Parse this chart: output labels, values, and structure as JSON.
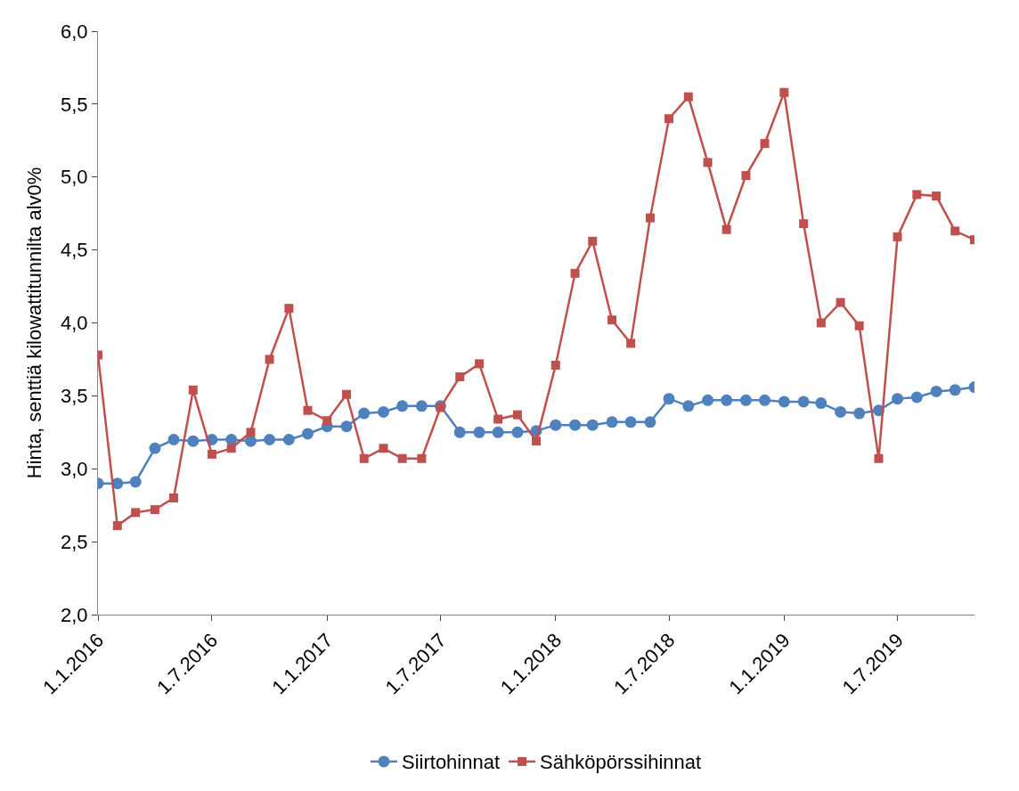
{
  "chart_data": {
    "type": "line",
    "ylabel": "Hinta, senttiä kilowattitunnilta alv0%",
    "x": [
      "2016-01",
      "2016-02",
      "2016-03",
      "2016-04",
      "2016-05",
      "2016-06",
      "2016-07",
      "2016-08",
      "2016-09",
      "2016-10",
      "2016-11",
      "2016-12",
      "2017-01",
      "2017-02",
      "2017-03",
      "2017-04",
      "2017-05",
      "2017-06",
      "2017-07",
      "2017-08",
      "2017-09",
      "2017-10",
      "2017-11",
      "2017-12",
      "2018-01",
      "2018-02",
      "2018-03",
      "2018-04",
      "2018-05",
      "2018-06",
      "2018-07",
      "2018-08",
      "2018-09",
      "2018-10",
      "2018-11",
      "2018-12",
      "2019-01",
      "2019-02",
      "2019-03",
      "2019-04",
      "2019-05",
      "2019-06",
      "2019-07",
      "2019-08",
      "2019-09",
      "2019-10",
      "2019-11"
    ],
    "series": [
      {
        "name": "Siirtohinnat",
        "color": "#4f81bd",
        "marker": "circle",
        "values": [
          2.9,
          2.9,
          2.91,
          3.14,
          3.2,
          3.19,
          3.2,
          3.2,
          3.19,
          3.2,
          3.2,
          3.24,
          3.29,
          3.29,
          3.38,
          3.39,
          3.43,
          3.43,
          3.43,
          3.25,
          3.25,
          3.25,
          3.25,
          3.26,
          3.3,
          3.3,
          3.3,
          3.32,
          3.32,
          3.32,
          3.48,
          3.43,
          3.47,
          3.47,
          3.47,
          3.47,
          3.46,
          3.46,
          3.45,
          3.39,
          3.38,
          3.4,
          3.48,
          3.49,
          3.53,
          3.54,
          3.56
        ]
      },
      {
        "name": "Sähköpörssihinnat",
        "color": "#c0504d",
        "marker": "square",
        "values": [
          3.78,
          2.61,
          2.7,
          2.72,
          2.8,
          3.54,
          3.1,
          3.14,
          3.25,
          3.75,
          4.1,
          3.4,
          3.33,
          3.51,
          3.07,
          3.14,
          3.07,
          3.07,
          3.42,
          3.63,
          3.72,
          3.34,
          3.37,
          3.19,
          3.71,
          4.34,
          4.56,
          4.02,
          3.86,
          4.72,
          5.4,
          5.55,
          5.1,
          4.64,
          5.01,
          5.23,
          5.58,
          4.68,
          4.0,
          4.14,
          3.98,
          3.07,
          4.59,
          4.88,
          4.87,
          4.63,
          4.57
        ]
      }
    ],
    "xlim": [
      "2016-01-01",
      "2019-11-01"
    ],
    "xticks": [
      {
        "value": "2016-01-01",
        "label": "1.1.2016"
      },
      {
        "value": "2016-07-01",
        "label": "1.7.2016"
      },
      {
        "value": "2017-01-01",
        "label": "1.1.2017"
      },
      {
        "value": "2017-07-01",
        "label": "1.7.2017"
      },
      {
        "value": "2018-01-01",
        "label": "1.1.2018"
      },
      {
        "value": "2018-07-01",
        "label": "1.7.2018"
      },
      {
        "value": "2019-01-01",
        "label": "1.1.2019"
      },
      {
        "value": "2019-07-01",
        "label": "1.7.2019"
      }
    ],
    "ylim": [
      2.0,
      6.0
    ],
    "yticks": [
      {
        "value": 2.0,
        "label": "2,0"
      },
      {
        "value": 2.5,
        "label": "2,5"
      },
      {
        "value": 3.0,
        "label": "3,0"
      },
      {
        "value": 3.5,
        "label": "3,5"
      },
      {
        "value": 4.0,
        "label": "4,0"
      },
      {
        "value": 4.5,
        "label": "4,5"
      },
      {
        "value": 5.0,
        "label": "5,0"
      },
      {
        "value": 5.5,
        "label": "5,5"
      },
      {
        "value": 6.0,
        "label": "6,0"
      }
    ],
    "legend": "bottom",
    "line_style": "solid"
  }
}
